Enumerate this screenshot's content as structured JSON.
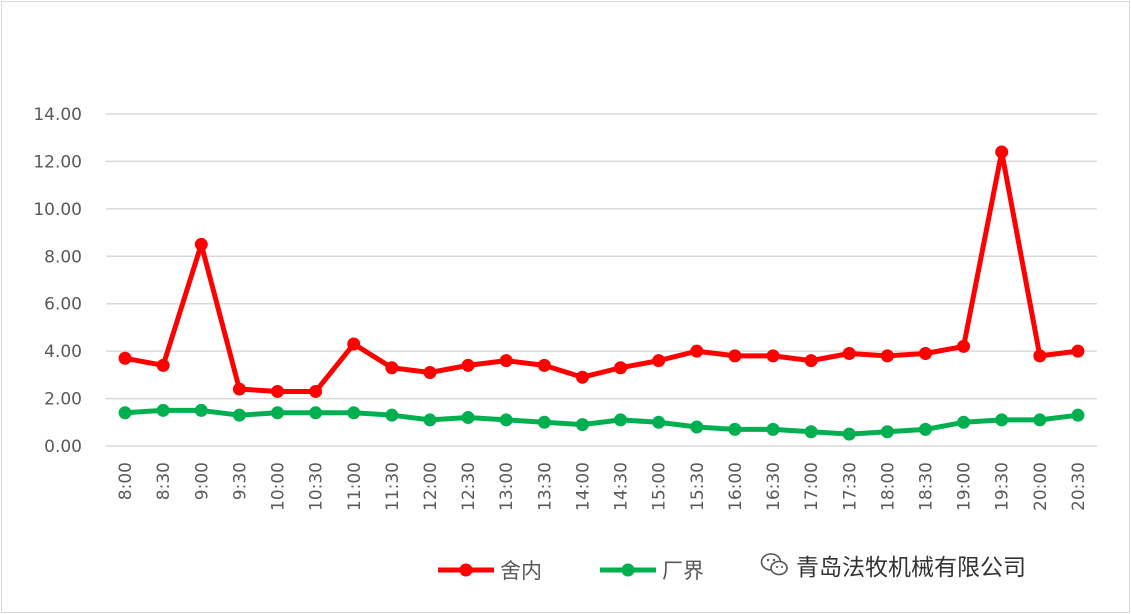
{
  "chart_data": {
    "type": "line",
    "title": "",
    "xlabel": "",
    "ylabel": "",
    "ylim": [
      0,
      14
    ],
    "yticks": [
      "0.00",
      "2.00",
      "4.00",
      "6.00",
      "8.00",
      "10.00",
      "12.00",
      "14.00"
    ],
    "grid": true,
    "legend_position": "bottom",
    "categories": [
      "8:00",
      "8:30",
      "9:00",
      "9:30",
      "10:00",
      "10:30",
      "11:00",
      "11:30",
      "12:00",
      "12:30",
      "13:00",
      "13:30",
      "14:00",
      "14:30",
      "15:00",
      "15:30",
      "16:00",
      "16:30",
      "17:00",
      "17:30",
      "18:00",
      "18:30",
      "19:00",
      "19:30",
      "20:00",
      "20:30"
    ],
    "series": [
      {
        "name": "舍内",
        "color": "#ff0000",
        "values": [
          3.7,
          3.4,
          8.5,
          2.4,
          2.3,
          2.3,
          4.3,
          3.3,
          3.1,
          3.4,
          3.6,
          3.4,
          2.9,
          3.3,
          3.6,
          4.0,
          3.8,
          3.8,
          3.6,
          3.9,
          3.8,
          3.9,
          4.2,
          12.4,
          3.8,
          4.0
        ]
      },
      {
        "name": "厂界",
        "color": "#00b050",
        "values": [
          1.4,
          1.5,
          1.5,
          1.3,
          1.4,
          1.4,
          1.4,
          1.3,
          1.1,
          1.2,
          1.1,
          1.0,
          0.9,
          1.1,
          1.0,
          0.8,
          0.7,
          0.7,
          0.6,
          0.5,
          0.6,
          0.7,
          1.0,
          1.1,
          1.1,
          1.3
        ]
      }
    ]
  },
  "watermark": {
    "text": "青岛法牧机械有限公司",
    "icon": "wechat-icon"
  }
}
